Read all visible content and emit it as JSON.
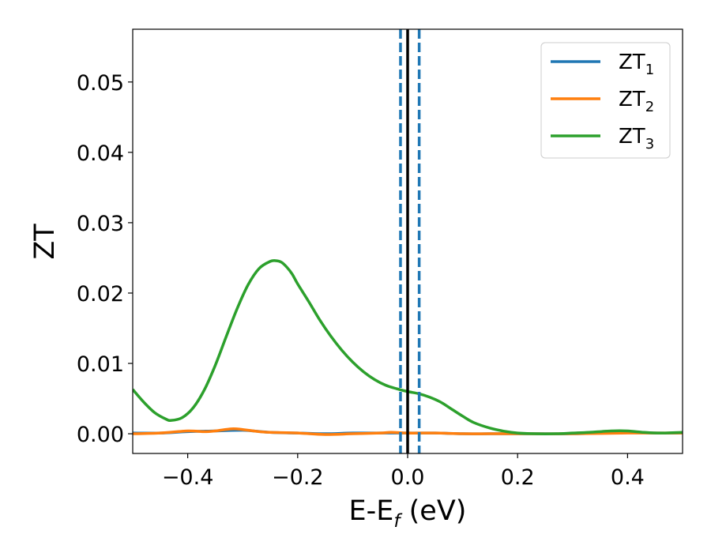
{
  "chart_data": {
    "type": "line",
    "xlabel": {
      "main": "E-E",
      "sub": "f",
      "unit": " (eV)"
    },
    "ylabel": "ZT",
    "xlim": [
      -0.5,
      0.5
    ],
    "ylim": [
      -0.0028,
      0.0575
    ],
    "x_ticks": [
      -0.4,
      -0.2,
      0.0,
      0.2,
      0.4
    ],
    "x_tick_labels": [
      "−0.4",
      "−0.2",
      "0.0",
      "0.2",
      "0.4"
    ],
    "y_ticks": [
      0.0,
      0.01,
      0.02,
      0.03,
      0.04,
      0.05
    ],
    "y_tick_labels": [
      "0.00",
      "0.01",
      "0.02",
      "0.03",
      "0.04",
      "0.05"
    ],
    "grid": false,
    "legend_position": "top-right",
    "series": [
      {
        "name": "ZT",
        "name_sub": "1",
        "color": "#1f77b4",
        "x": [
          -0.5,
          -0.45,
          -0.4,
          -0.35,
          -0.3,
          -0.25,
          -0.2,
          -0.15,
          -0.1,
          -0.05,
          0.0,
          0.05,
          0.1,
          0.15,
          0.2,
          0.25,
          0.3,
          0.35,
          0.4,
          0.45,
          0.5
        ],
        "y": [
          0.0001,
          0.0001,
          0.0003,
          0.0004,
          0.0005,
          0.0002,
          0.0001,
          0.0,
          0.0001,
          0.0001,
          0.0001,
          0.0001,
          0.0,
          0.0,
          0.0,
          0.0,
          0.0,
          0.0001,
          0.0002,
          0.0001,
          0.0001
        ]
      },
      {
        "name": "ZT",
        "name_sub": "2",
        "color": "#ff7f0e",
        "x": [
          -0.5,
          -0.45,
          -0.4,
          -0.37,
          -0.35,
          -0.32,
          -0.3,
          -0.27,
          -0.25,
          -0.2,
          -0.15,
          -0.1,
          -0.05,
          -0.03,
          0.0,
          0.05,
          0.1,
          0.15,
          0.2,
          0.3,
          0.4,
          0.5
        ],
        "y": [
          0.0,
          0.0001,
          0.0004,
          0.0003,
          0.0004,
          0.0007,
          0.0006,
          0.0003,
          0.0002,
          0.0001,
          -0.0001,
          0.0,
          0.0001,
          0.0002,
          0.0001,
          0.0001,
          0.0,
          0.0,
          0.0,
          0.0,
          0.0001,
          0.0001
        ]
      },
      {
        "name": "ZT",
        "name_sub": "3",
        "color": "#2ca02c",
        "x": [
          -0.5,
          -0.48,
          -0.46,
          -0.44,
          -0.43,
          -0.41,
          -0.39,
          -0.37,
          -0.35,
          -0.33,
          -0.31,
          -0.29,
          -0.27,
          -0.25,
          -0.24,
          -0.23,
          -0.22,
          -0.21,
          -0.2,
          -0.18,
          -0.16,
          -0.14,
          -0.12,
          -0.1,
          -0.08,
          -0.06,
          -0.04,
          -0.02,
          0.0,
          0.02,
          0.04,
          0.06,
          0.08,
          0.1,
          0.12,
          0.15,
          0.18,
          0.2,
          0.23,
          0.27,
          0.3,
          0.33,
          0.37,
          0.4,
          0.43,
          0.46,
          0.5
        ],
        "y": [
          0.0063,
          0.0045,
          0.003,
          0.0021,
          0.0019,
          0.0023,
          0.0037,
          0.0062,
          0.0097,
          0.0138,
          0.0178,
          0.0212,
          0.0235,
          0.0245,
          0.0246,
          0.0244,
          0.0237,
          0.0227,
          0.0213,
          0.0188,
          0.0162,
          0.0139,
          0.0119,
          0.0102,
          0.0088,
          0.0077,
          0.0069,
          0.0064,
          0.006,
          0.0057,
          0.0052,
          0.0045,
          0.0035,
          0.0025,
          0.0016,
          0.0008,
          0.0003,
          0.0001,
          0.0,
          0.0,
          0.0001,
          0.0002,
          0.0004,
          0.0004,
          0.0002,
          0.0001,
          0.0002
        ]
      }
    ],
    "vertical_lines": [
      {
        "x": -0.013,
        "style": "dashed",
        "color": "#1f77b4"
      },
      {
        "x": 0.021,
        "style": "dashed",
        "color": "#1f77b4"
      },
      {
        "x": 0.0,
        "style": "solid",
        "color": "#000000"
      }
    ]
  }
}
